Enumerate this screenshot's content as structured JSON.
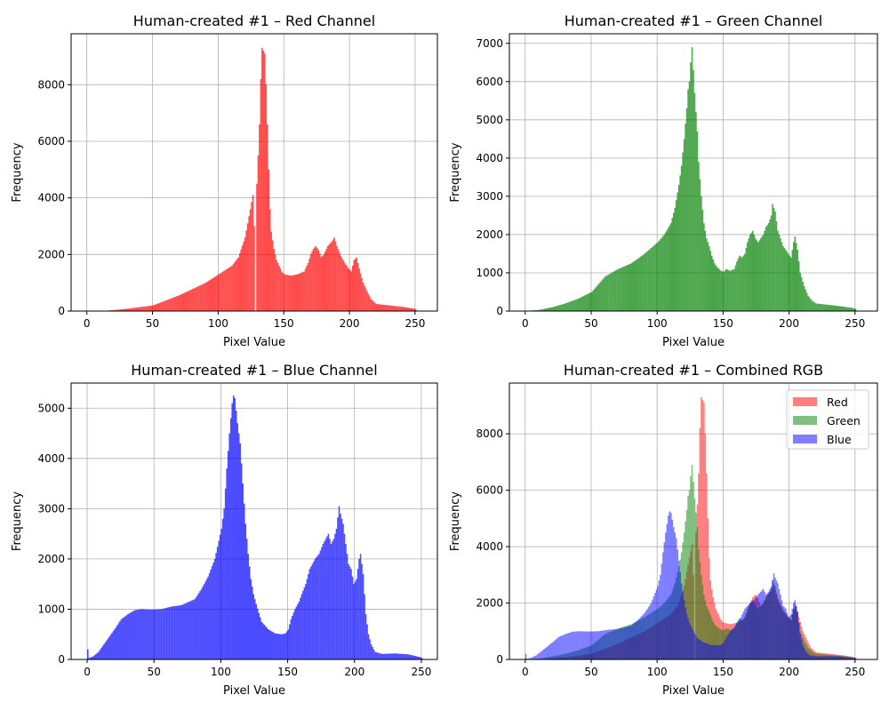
{
  "colors": {
    "red": "#ff0000",
    "green": "#008000",
    "blue": "#0000ff"
  },
  "chart_data": [
    {
      "type": "bar",
      "title": "Human-created #1 – Red Channel",
      "xlabel": "Pixel Value",
      "ylabel": "Frequency",
      "xlim": [
        -12,
        267
      ],
      "ylim": [
        0,
        9800
      ],
      "xticks": [
        0,
        50,
        100,
        150,
        200,
        250
      ],
      "yticks": [
        0,
        2000,
        4000,
        6000,
        8000
      ],
      "grid": true,
      "series": [
        {
          "color": "#ff0000",
          "opacity": 0.7,
          "anchors": [
            [
              0,
              0
            ],
            [
              14,
              0
            ],
            [
              16,
              20
            ],
            [
              30,
              80
            ],
            [
              50,
              200
            ],
            [
              70,
              560
            ],
            [
              90,
              1000
            ],
            [
              100,
              1300
            ],
            [
              110,
              1600
            ],
            [
              115,
              1900
            ],
            [
              120,
              2600
            ],
            [
              124,
              3600
            ],
            [
              126,
              4100
            ],
            [
              127,
              3000
            ],
            [
              128,
              0
            ],
            [
              129,
              4500
            ],
            [
              130,
              5500
            ],
            [
              131,
              6600
            ],
            [
              132,
              8200
            ],
            [
              133,
              9300
            ],
            [
              134,
              9200
            ],
            [
              135,
              9100
            ],
            [
              136,
              8000
            ],
            [
              137,
              6600
            ],
            [
              138,
              5000
            ],
            [
              139,
              3600
            ],
            [
              140,
              2800
            ],
            [
              142,
              2200
            ],
            [
              144,
              1800
            ],
            [
              146,
              1600
            ],
            [
              148,
              1400
            ],
            [
              150,
              1300
            ],
            [
              155,
              1250
            ],
            [
              160,
              1300
            ],
            [
              165,
              1400
            ],
            [
              168,
              1700
            ],
            [
              170,
              2000
            ],
            [
              172,
              2200
            ],
            [
              174,
              2300
            ],
            [
              176,
              2150
            ],
            [
              178,
              1900
            ],
            [
              180,
              2000
            ],
            [
              183,
              2300
            ],
            [
              186,
              2450
            ],
            [
              188,
              2600
            ],
            [
              190,
              2300
            ],
            [
              193,
              1950
            ],
            [
              196,
              1700
            ],
            [
              199,
              1500
            ],
            [
              201,
              1400
            ],
            [
              203,
              1800
            ],
            [
              205,
              1900
            ],
            [
              207,
              1500
            ],
            [
              210,
              1000
            ],
            [
              213,
              700
            ],
            [
              216,
              420
            ],
            [
              220,
              250
            ],
            [
              230,
              200
            ],
            [
              240,
              150
            ],
            [
              248,
              90
            ],
            [
              250,
              70
            ],
            [
              251,
              0
            ]
          ]
        }
      ]
    },
    {
      "type": "bar",
      "title": "Human-created #1 – Green Channel",
      "xlabel": "Pixel Value",
      "ylabel": "Frequency",
      "xlim": [
        -12,
        267
      ],
      "ylim": [
        0,
        7250
      ],
      "xticks": [
        0,
        50,
        100,
        150,
        200,
        250
      ],
      "yticks": [
        0,
        1000,
        2000,
        3000,
        4000,
        5000,
        6000,
        7000
      ],
      "grid": true,
      "series": [
        {
          "color": "#008000",
          "opacity": 0.7,
          "anchors": [
            [
              0,
              0
            ],
            [
              3,
              10
            ],
            [
              10,
              30
            ],
            [
              20,
              100
            ],
            [
              30,
              200
            ],
            [
              40,
              330
            ],
            [
              50,
              500
            ],
            [
              55,
              700
            ],
            [
              60,
              900
            ],
            [
              70,
              1100
            ],
            [
              80,
              1250
            ],
            [
              90,
              1500
            ],
            [
              100,
              1800
            ],
            [
              105,
              2000
            ],
            [
              110,
              2300
            ],
            [
              113,
              2700
            ],
            [
              116,
              3300
            ],
            [
              118,
              3800
            ],
            [
              120,
              4500
            ],
            [
              122,
              5300
            ],
            [
              123,
              5800
            ],
            [
              124,
              6000
            ],
            [
              125,
              6500
            ],
            [
              126,
              6900
            ],
            [
              127,
              6300
            ],
            [
              128,
              5700
            ],
            [
              129,
              5200
            ],
            [
              130,
              4700
            ],
            [
              131,
              3900
            ],
            [
              133,
              3000
            ],
            [
              135,
              2300
            ],
            [
              137,
              1900
            ],
            [
              139,
              1700
            ],
            [
              141,
              1450
            ],
            [
              143,
              1250
            ],
            [
              145,
              1150
            ],
            [
              148,
              1050
            ],
            [
              150,
              1030
            ],
            [
              152,
              1100
            ],
            [
              155,
              1050
            ],
            [
              158,
              1100
            ],
            [
              160,
              1300
            ],
            [
              162,
              1450
            ],
            [
              164,
              1400
            ],
            [
              166,
              1500
            ],
            [
              168,
              1800
            ],
            [
              170,
              2000
            ],
            [
              172,
              2100
            ],
            [
              174,
              1900
            ],
            [
              176,
              1800
            ],
            [
              178,
              1900
            ],
            [
              180,
              2000
            ],
            [
              182,
              2200
            ],
            [
              184,
              2300
            ],
            [
              186,
              2500
            ],
            [
              187,
              2800
            ],
            [
              189,
              2600
            ],
            [
              191,
              2100
            ],
            [
              193,
              1900
            ],
            [
              195,
              1700
            ],
            [
              197,
              1600
            ],
            [
              199,
              1500
            ],
            [
              201,
              1400
            ],
            [
              203,
              1800
            ],
            [
              204,
              1950
            ],
            [
              206,
              1600
            ],
            [
              208,
              1000
            ],
            [
              211,
              650
            ],
            [
              214,
              400
            ],
            [
              217,
              270
            ],
            [
              220,
              200
            ],
            [
              230,
              160
            ],
            [
              240,
              120
            ],
            [
              248,
              80
            ],
            [
              250,
              60
            ],
            [
              251,
              0
            ]
          ]
        }
      ]
    },
    {
      "type": "bar",
      "title": "Human-created #1 – Blue Channel",
      "xlabel": "Pixel Value",
      "ylabel": "Frequency",
      "xlim": [
        -12,
        262
      ],
      "ylim": [
        0,
        5500
      ],
      "xticks": [
        0,
        50,
        100,
        150,
        200,
        250
      ],
      "yticks": [
        0,
        1000,
        2000,
        3000,
        4000,
        5000
      ],
      "grid": true,
      "series": [
        {
          "color": "#0000ff",
          "opacity": 0.7,
          "anchors": [
            [
              0,
              200
            ],
            [
              1,
              30
            ],
            [
              4,
              60
            ],
            [
              8,
              150
            ],
            [
              12,
              300
            ],
            [
              16,
              450
            ],
            [
              20,
              600
            ],
            [
              25,
              800
            ],
            [
              30,
              900
            ],
            [
              35,
              980
            ],
            [
              40,
              1000
            ],
            [
              48,
              990
            ],
            [
              55,
              1000
            ],
            [
              62,
              1050
            ],
            [
              70,
              1080
            ],
            [
              80,
              1200
            ],
            [
              85,
              1400
            ],
            [
              90,
              1650
            ],
            [
              95,
              2000
            ],
            [
              100,
              2600
            ],
            [
              102,
              3000
            ],
            [
              104,
              3800
            ],
            [
              106,
              4500
            ],
            [
              108,
              5100
            ],
            [
              109,
              5250
            ],
            [
              110,
              5200
            ],
            [
              112,
              4700
            ],
            [
              114,
              4300
            ],
            [
              116,
              3500
            ],
            [
              118,
              2700
            ],
            [
              120,
              2100
            ],
            [
              122,
              1600
            ],
            [
              124,
              1300
            ],
            [
              126,
              1100
            ],
            [
              130,
              750
            ],
            [
              135,
              600
            ],
            [
              140,
              520
            ],
            [
              145,
              500
            ],
            [
              148,
              520
            ],
            [
              150,
              600
            ],
            [
              152,
              800
            ],
            [
              155,
              1000
            ],
            [
              158,
              1150
            ],
            [
              160,
              1300
            ],
            [
              163,
              1500
            ],
            [
              166,
              1800
            ],
            [
              170,
              2000
            ],
            [
              173,
              2100
            ],
            [
              176,
              2300
            ],
            [
              178,
              2400
            ],
            [
              180,
              2500
            ],
            [
              182,
              2300
            ],
            [
              184,
              2400
            ],
            [
              186,
              2600
            ],
            [
              188,
              3050
            ],
            [
              189,
              2900
            ],
            [
              191,
              2700
            ],
            [
              193,
              2300
            ],
            [
              195,
              1900
            ],
            [
              197,
              1800
            ],
            [
              199,
              1500
            ],
            [
              201,
              1600
            ],
            [
              203,
              2000
            ],
            [
              204,
              2100
            ],
            [
              206,
              1700
            ],
            [
              208,
              900
            ],
            [
              210,
              500
            ],
            [
              212,
              300
            ],
            [
              215,
              150
            ],
            [
              220,
              110
            ],
            [
              230,
              120
            ],
            [
              240,
              100
            ],
            [
              248,
              50
            ],
            [
              250,
              30
            ],
            [
              251,
              0
            ]
          ]
        }
      ]
    },
    {
      "type": "bar",
      "title": "Human-created #1 – Combined RGB",
      "xlabel": "Pixel Value",
      "ylabel": "Frequency",
      "xlim": [
        -12,
        267
      ],
      "ylim": [
        0,
        9800
      ],
      "xticks": [
        0,
        50,
        100,
        150,
        200,
        250
      ],
      "yticks": [
        0,
        2000,
        4000,
        6000,
        8000
      ],
      "grid": true,
      "legend": {
        "position": "top-right",
        "entries": [
          "Red",
          "Green",
          "Blue"
        ]
      },
      "series": [
        {
          "name": "Red",
          "color": "#ff0000",
          "opacity": 0.5,
          "same_as": 0
        },
        {
          "name": "Green",
          "color": "#008000",
          "opacity": 0.5,
          "same_as": 1
        },
        {
          "name": "Blue",
          "color": "#0000ff",
          "opacity": 0.5,
          "same_as": 2
        }
      ]
    }
  ]
}
